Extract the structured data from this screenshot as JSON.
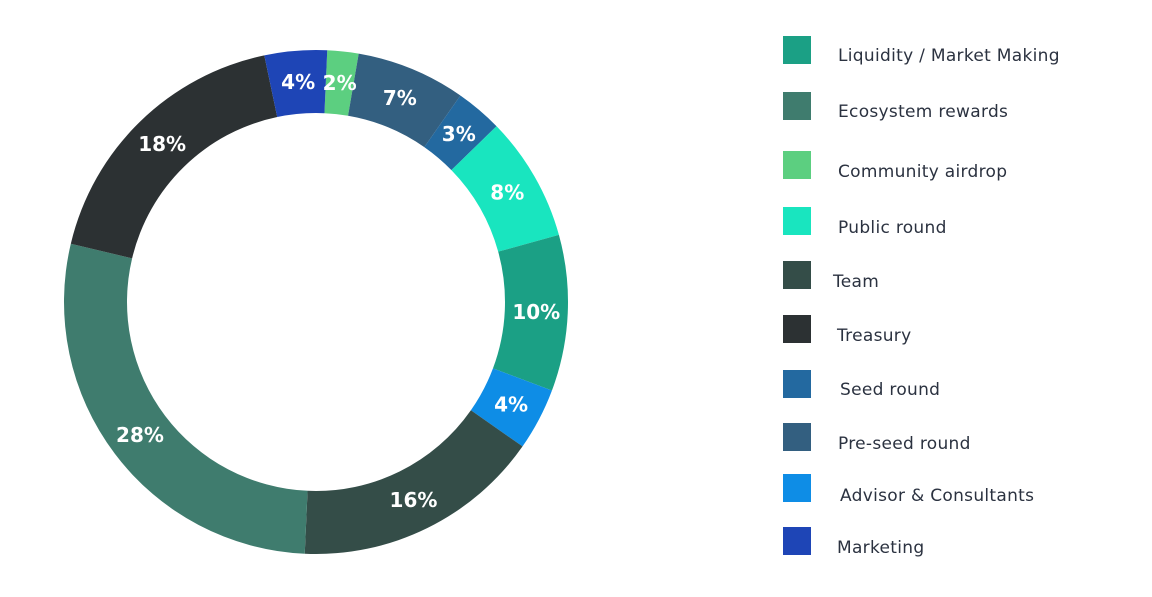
{
  "chart_data": {
    "type": "pie",
    "variant": "donut",
    "title": "",
    "legend_position": "right",
    "slices": [
      {
        "label": "Liquidity / Market Making",
        "value": 10,
        "display": "10%",
        "color": "#1ba085"
      },
      {
        "label": "Ecosystem rewards",
        "value": 28,
        "display": "28%",
        "color": "#3f7c6e"
      },
      {
        "label": "Community airdrop",
        "value": 2,
        "display": "2%",
        "color": "#5ccf80"
      },
      {
        "label": "Public round",
        "value": 8,
        "display": "8%",
        "color": "#19e5bf"
      },
      {
        "label": "Team",
        "value": 16,
        "display": "16%",
        "color": "#344d48"
      },
      {
        "label": "Treasury",
        "value": 18,
        "display": "18%",
        "color": "#2c3133"
      },
      {
        "label": "Seed round",
        "value": 3,
        "display": "3%",
        "color": "#2369a0"
      },
      {
        "label": "Pre-seed round",
        "value": 7,
        "display": "7%",
        "color": "#335f80"
      },
      {
        "label": "Advisor & Consultants",
        "value": 4,
        "display": "4%",
        "color": "#0e8de6"
      },
      {
        "label": "Marketing",
        "value": 4,
        "display": "4%",
        "color": "#1e45b6"
      }
    ],
    "ring_order": [
      "Community airdrop",
      "Pre-seed round",
      "Seed round",
      "Public round",
      "Liquidity / Market Making",
      "Advisor & Consultants",
      "Team",
      "Ecosystem rewards",
      "Treasury",
      "Marketing"
    ]
  }
}
